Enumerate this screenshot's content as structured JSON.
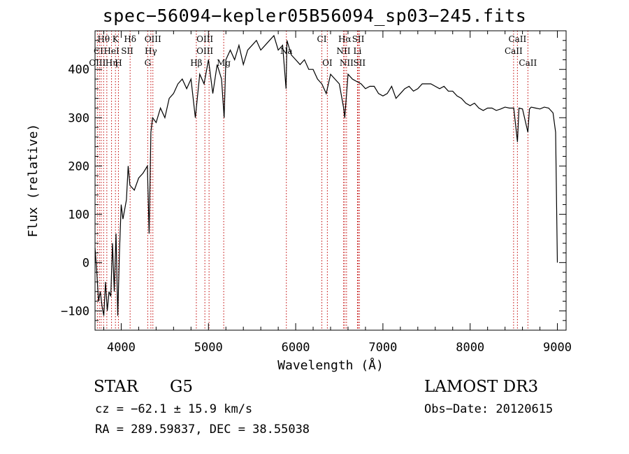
{
  "title": "spec−56094−kepler05B56094_sp03−245.fits",
  "chart_data": {
    "type": "line",
    "title": "spec−56094−kepler05B56094_sp03−245.fits",
    "xlabel": "Wavelength (Å)",
    "ylabel": "Flux (relative)",
    "xlim": [
      3700,
      9100
    ],
    "ylim": [
      -140,
      480
    ],
    "xticks": [
      4000,
      5000,
      6000,
      7000,
      8000,
      9000
    ],
    "yticks": [
      -100,
      0,
      100,
      200,
      300,
      400
    ],
    "series": [
      {
        "name": "spectrum",
        "x": [
          3700,
          3720,
          3740,
          3760,
          3780,
          3800,
          3820,
          3840,
          3860,
          3880,
          3900,
          3920,
          3940,
          3960,
          3980,
          4000,
          4020,
          4040,
          4060,
          4080,
          4100,
          4150,
          4200,
          4250,
          4300,
          4320,
          4340,
          4360,
          4400,
          4450,
          4500,
          4550,
          4600,
          4650,
          4700,
          4750,
          4800,
          4850,
          4900,
          4950,
          5000,
          5050,
          5100,
          5150,
          5180,
          5200,
          5250,
          5300,
          5350,
          5400,
          5450,
          5500,
          5550,
          5600,
          5650,
          5700,
          5750,
          5800,
          5850,
          5890,
          5900,
          5950,
          6000,
          6050,
          6100,
          6150,
          6200,
          6250,
          6300,
          6350,
          6400,
          6450,
          6500,
          6550,
          6563,
          6600,
          6650,
          6700,
          6750,
          6800,
          6850,
          6900,
          6950,
          7000,
          7050,
          7100,
          7150,
          7200,
          7250,
          7300,
          7350,
          7400,
          7450,
          7500,
          7550,
          7600,
          7650,
          7700,
          7750,
          7800,
          7850,
          7900,
          7950,
          8000,
          8050,
          8100,
          8150,
          8200,
          8250,
          8300,
          8350,
          8400,
          8450,
          8500,
          8542,
          8560,
          8600,
          8662,
          8680,
          8700,
          8750,
          8800,
          8850,
          8900,
          8950,
          8980,
          9000
        ],
        "y": [
          30,
          -20,
          -80,
          -60,
          -90,
          -110,
          -40,
          -100,
          -60,
          -70,
          40,
          -60,
          60,
          -110,
          20,
          120,
          90,
          110,
          130,
          200,
          160,
          150,
          175,
          185,
          200,
          60,
          270,
          300,
          290,
          320,
          300,
          340,
          350,
          370,
          380,
          360,
          380,
          300,
          390,
          370,
          420,
          350,
          410,
          380,
          300,
          420,
          440,
          420,
          450,
          410,
          440,
          450,
          460,
          440,
          450,
          460,
          470,
          440,
          450,
          360,
          460,
          430,
          420,
          410,
          420,
          400,
          400,
          380,
          370,
          350,
          390,
          380,
          370,
          320,
          300,
          390,
          380,
          375,
          370,
          360,
          365,
          365,
          350,
          345,
          350,
          365,
          340,
          350,
          360,
          365,
          355,
          360,
          370,
          370,
          370,
          365,
          360,
          365,
          355,
          355,
          345,
          340,
          330,
          325,
          330,
          320,
          315,
          320,
          320,
          315,
          318,
          322,
          320,
          320,
          250,
          320,
          318,
          270,
          318,
          322,
          320,
          318,
          322,
          320,
          310,
          270,
          0
        ]
      }
    ],
    "line_labels": [
      {
        "text": "Hθ",
        "x": 3798,
        "row": 0
      },
      {
        "text": "K",
        "x": 3934,
        "row": 0
      },
      {
        "text": "Hδ",
        "x": 4102,
        "row": 0
      },
      {
        "text": "OIII",
        "x": 4363,
        "row": 0
      },
      {
        "text": "OIII",
        "x": 4959,
        "row": 0
      },
      {
        "text": "CI",
        "x": 6300,
        "row": 0
      },
      {
        "text": "Hα",
        "x": 6563,
        "row": 0
      },
      {
        "text": "SII",
        "x": 6717,
        "row": 0
      },
      {
        "text": "CaII",
        "x": 8542,
        "row": 0
      },
      {
        "text": "CI",
        "x": 3740,
        "row": 1
      },
      {
        "text": "HeI",
        "x": 3889,
        "row": 1
      },
      {
        "text": "SII",
        "x": 4069,
        "row": 1
      },
      {
        "text": "Hγ",
        "x": 4340,
        "row": 1
      },
      {
        "text": "OIII",
        "x": 4959,
        "row": 1
      },
      {
        "text": "Na",
        "x": 5893,
        "row": 1
      },
      {
        "text": "NII",
        "x": 6548,
        "row": 1
      },
      {
        "text": "Li",
        "x": 6708,
        "row": 1
      },
      {
        "text": "CaII",
        "x": 8498,
        "row": 1
      },
      {
        "text": "OIII",
        "x": 3727,
        "row": 2
      },
      {
        "text": "Hη",
        "x": 3889,
        "row": 2
      },
      {
        "text": "H",
        "x": 3968,
        "row": 2
      },
      {
        "text": "G",
        "x": 4304,
        "row": 2
      },
      {
        "text": "Hβ",
        "x": 4861,
        "row": 2
      },
      {
        "text": "Mg",
        "x": 5175,
        "row": 2
      },
      {
        "text": "OI",
        "x": 6363,
        "row": 2
      },
      {
        "text": "NII",
        "x": 6583,
        "row": 2
      },
      {
        "text": "SII",
        "x": 6731,
        "row": 2
      },
      {
        "text": "CaII",
        "x": 8662,
        "row": 2
      }
    ],
    "line_positions": [
      3727,
      3750,
      3770,
      3798,
      3835,
      3889,
      3934,
      3968,
      4102,
      4304,
      4340,
      4363,
      4861,
      4959,
      5007,
      5175,
      5893,
      6300,
      6363,
      6548,
      6563,
      6583,
      6708,
      6717,
      6731,
      8498,
      8542,
      8662
    ]
  },
  "info": {
    "class_label": "STAR",
    "subclass": "G5",
    "survey": "LAMOST DR3",
    "cz": "cz = −62.1 ± 15.9 km/s",
    "obs_date": "Obs−Date: 20120615",
    "coords": "RA = 289.59837, DEC =  38.55038"
  }
}
